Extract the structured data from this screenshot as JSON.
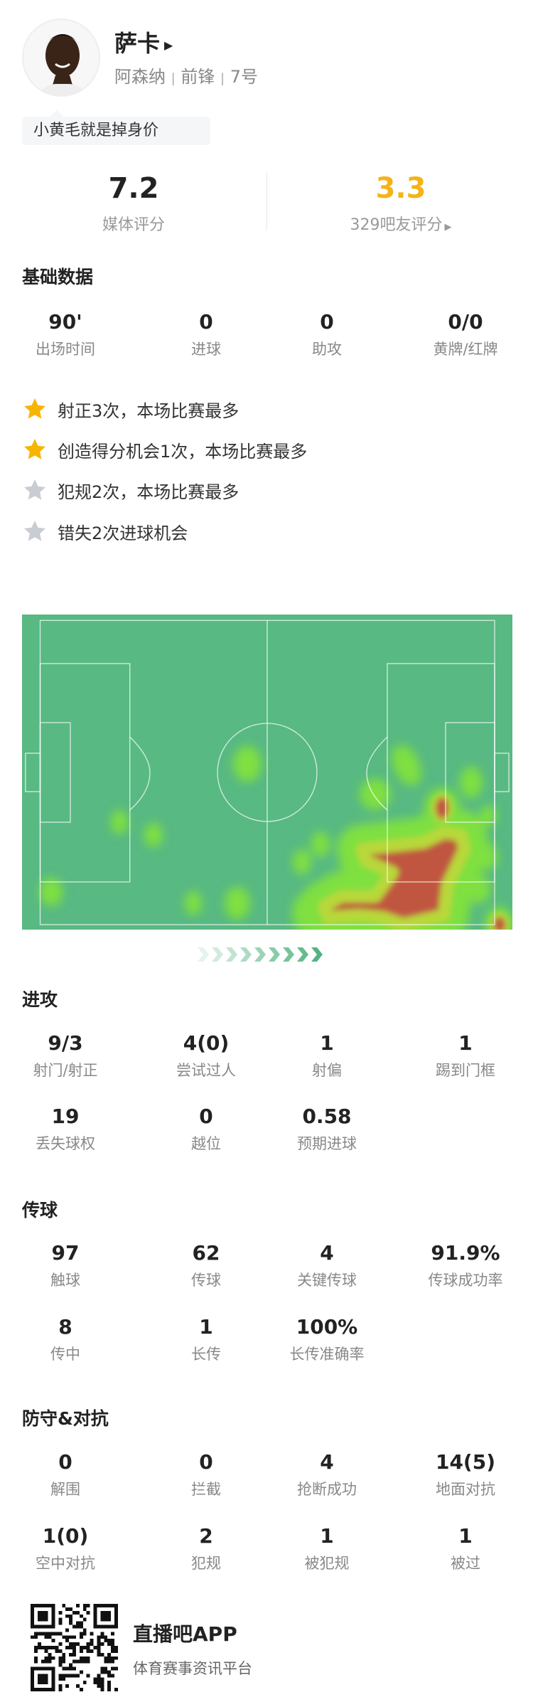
{
  "player": {
    "name": "萨卡",
    "team": "阿森纳",
    "position": "前锋",
    "number": "7号",
    "sep": "|",
    "comment": "小黄毛就是掉身价"
  },
  "ratings": {
    "media": {
      "value": "7.2",
      "label": "媒体评分"
    },
    "fans": {
      "value": "3.3",
      "label": "329吧友评分",
      "color": "#f5b316"
    }
  },
  "basic": {
    "title": "基础数据",
    "stats": [
      {
        "value": "90'",
        "label": "出场时间"
      },
      {
        "value": "0",
        "label": "进球"
      },
      {
        "value": "0",
        "label": "助攻"
      },
      {
        "value": "0/0",
        "label": "黄牌/红牌"
      }
    ]
  },
  "highlights": [
    {
      "text": "射正3次，本场比赛最多",
      "star": "gold"
    },
    {
      "text": "创造得分机会1次，本场比赛最多",
      "star": "gold"
    },
    {
      "text": "犯规2次，本场比赛最多",
      "star": "gray"
    },
    {
      "text": "错失2次进球机会",
      "star": "gray"
    }
  ],
  "colors": {
    "gold": "#f7b500",
    "gray": "#c9ccd3",
    "pitch": "#58b983",
    "heat_red": "#c0573f",
    "heat_green": "#5ee33a"
  },
  "attack": {
    "title": "进攻",
    "stats": [
      {
        "value": "9/3",
        "label": "射门/射正"
      },
      {
        "value": "4(0)",
        "label": "尝试过人"
      },
      {
        "value": "1",
        "label": "射偏"
      },
      {
        "value": "1",
        "label": "踢到门框"
      },
      {
        "value": "19",
        "label": "丢失球权"
      },
      {
        "value": "0",
        "label": "越位"
      },
      {
        "value": "0.58",
        "label": "预期进球"
      }
    ]
  },
  "passing": {
    "title": "传球",
    "stats": [
      {
        "value": "97",
        "label": "触球"
      },
      {
        "value": "62",
        "label": "传球"
      },
      {
        "value": "4",
        "label": "关键传球"
      },
      {
        "value": "91.9%",
        "label": "传球成功率"
      },
      {
        "value": "8",
        "label": "传中"
      },
      {
        "value": "1",
        "label": "长传"
      },
      {
        "value": "100%",
        "label": "长传准确率"
      }
    ]
  },
  "defense": {
    "title": "防守&对抗",
    "stats": [
      {
        "value": "0",
        "label": "解围"
      },
      {
        "value": "0",
        "label": "拦截"
      },
      {
        "value": "4",
        "label": "抢断成功"
      },
      {
        "value": "14(5)",
        "label": "地面对抗"
      },
      {
        "value": "1(0)",
        "label": "空中对抗"
      },
      {
        "value": "2",
        "label": "犯规"
      },
      {
        "value": "1",
        "label": "被犯规"
      },
      {
        "value": "1",
        "label": "被过"
      }
    ]
  },
  "footer": {
    "app": "直播吧APP",
    "slogan": "体育赛事资讯平台"
  }
}
